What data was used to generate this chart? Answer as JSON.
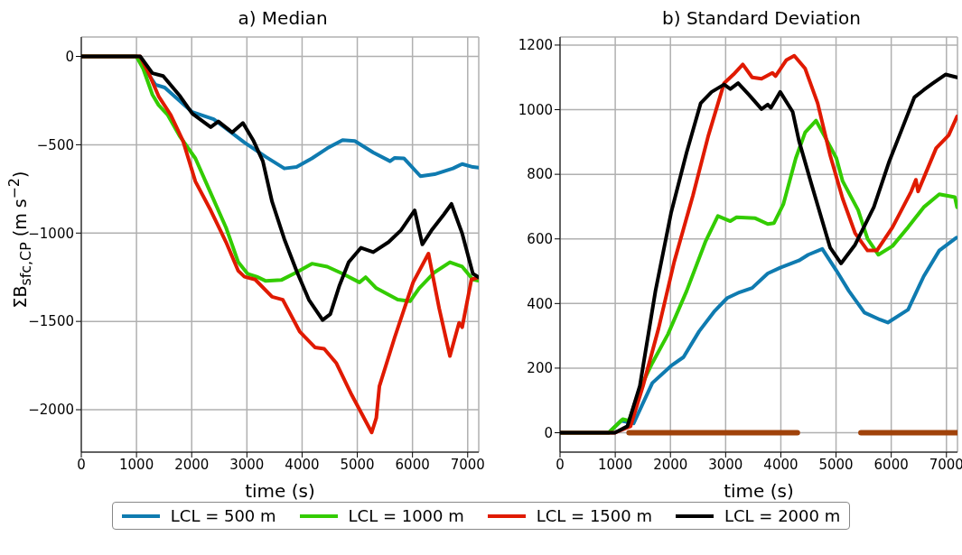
{
  "chart_data": [
    {
      "type": "line",
      "title": "a) Median",
      "xlabel": "time (s)",
      "ylabel": "ΣB$_{sfc,CP}$ (m s$^{−2}$)",
      "xlim": [
        0,
        7200
      ],
      "xticks": [
        0,
        1000,
        2000,
        3000,
        4000,
        5000,
        6000,
        7000
      ],
      "ylim": [
        -2240,
        110
      ],
      "yticks": [
        {
          "value": -2000,
          "label": "−2000"
        },
        {
          "value": -1500,
          "label": "−1500"
        },
        {
          "value": -1000,
          "label": "−1000"
        },
        {
          "value": -500,
          "label": "−500"
        },
        0
      ],
      "grid": true,
      "legend": "bottom",
      "line_style": "solid",
      "series": [
        {
          "name": "LCL = 500 m",
          "color": "#0f7bb0",
          "x": [
            0,
            1000,
            1344,
            1511,
            2011,
            2400,
            2955,
            3344,
            3678,
            3900,
            4178,
            4455,
            4733,
            4955,
            5289,
            5594,
            5678,
            5844,
            6144,
            6400,
            6733,
            6900,
            7094,
            7200
          ],
          "values": [
            0,
            0,
            -160,
            -176,
            -315,
            -356,
            -487,
            -569,
            -634,
            -626,
            -577,
            -520,
            -474,
            -479,
            -544,
            -593,
            -574,
            -577,
            -678,
            -667,
            -634,
            -609,
            -626,
            -630
          ]
        },
        {
          "name": "LCL = 1000 m",
          "color": "#33cc00",
          "x": [
            0,
            1000,
            1122,
            1289,
            1400,
            1567,
            1789,
            2067,
            2344,
            2622,
            2844,
            3011,
            3178,
            3344,
            3622,
            3900,
            4178,
            4455,
            4733,
            5039,
            5150,
            5344,
            5733,
            5955,
            6122,
            6400,
            6678,
            6900,
            7094,
            7200
          ],
          "values": [
            0,
            0,
            -70,
            -217,
            -275,
            -332,
            -454,
            -577,
            -773,
            -969,
            -1165,
            -1230,
            -1247,
            -1271,
            -1266,
            -1222,
            -1173,
            -1190,
            -1230,
            -1279,
            -1250,
            -1312,
            -1377,
            -1386,
            -1312,
            -1222,
            -1165,
            -1190,
            -1263,
            -1270
          ]
        },
        {
          "name": "LCL = 1500 m",
          "color": "#e01a00",
          "x": [
            0,
            1067,
            1233,
            1400,
            1622,
            1844,
            2067,
            2344,
            2622,
            2844,
            2955,
            3150,
            3456,
            3650,
            3955,
            4233,
            4400,
            4622,
            4900,
            5261,
            5344,
            5400,
            5678,
            6011,
            6289,
            6483,
            6678,
            6844,
            6900,
            7067,
            7200
          ],
          "values": [
            0,
            0,
            -103,
            -225,
            -332,
            -479,
            -708,
            -871,
            -1051,
            -1214,
            -1247,
            -1263,
            -1361,
            -1377,
            -1557,
            -1647,
            -1655,
            -1737,
            -1917,
            -2129,
            -2047,
            -1868,
            -1590,
            -1279,
            -1116,
            -1426,
            -1696,
            -1508,
            -1533,
            -1263,
            -1250
          ]
        },
        {
          "name": "LCL = 2000 m",
          "color": "#000000",
          "x": [
            0,
            1067,
            1289,
            1483,
            1789,
            2011,
            2344,
            2483,
            2733,
            2928,
            3122,
            3289,
            3456,
            3678,
            3900,
            4122,
            4372,
            4511,
            4678,
            4844,
            5067,
            5289,
            5567,
            5789,
            6039,
            6178,
            6344,
            6567,
            6706,
            6900,
            7094,
            7200
          ],
          "values": [
            0,
            0,
            -95,
            -111,
            -225,
            -324,
            -400,
            -368,
            -430,
            -377,
            -479,
            -593,
            -822,
            -1034,
            -1214,
            -1377,
            -1492,
            -1459,
            -1296,
            -1165,
            -1083,
            -1108,
            -1051,
            -985,
            -871,
            -1064,
            -985,
            -895,
            -835,
            -1002,
            -1230,
            -1250
          ]
        }
      ]
    },
    {
      "type": "line",
      "title": "b) Standard Deviation",
      "xlabel": "time (s)",
      "xlim": [
        0,
        7200
      ],
      "xticks": [
        0,
        1000,
        2000,
        3000,
        4000,
        5000,
        6000,
        7000
      ],
      "ylim": [
        -60,
        1225
      ],
      "yticks": [
        0,
        200,
        400,
        600,
        800,
        1000,
        1200
      ],
      "grid": true,
      "line_style": "solid",
      "series": [
        {
          "name": "LCL = 500 m",
          "color": "#0f7bb0",
          "x": [
            0,
            881,
            1107,
            1333,
            1672,
            2011,
            2237,
            2520,
            2802,
            3028,
            3254,
            3480,
            3763,
            3989,
            4328,
            4497,
            4751,
            5006,
            5232,
            5514,
            5797,
            5938,
            6305,
            6588,
            6870,
            7181
          ],
          "values": [
            0,
            0,
            37,
            29,
            154,
            207,
            234,
            314,
            377,
            417,
            435,
            448,
            493,
            511,
            533,
            551,
            569,
            502,
            439,
            372,
            350,
            341,
            381,
            484,
            564,
            604
          ]
        },
        {
          "name": "LCL = 1000 m",
          "color": "#33cc00",
          "x": [
            0,
            881,
            1136,
            1249,
            1446,
            1672,
            1955,
            2294,
            2633,
            2859,
            3085,
            3198,
            3537,
            3763,
            3876,
            4045,
            4271,
            4441,
            4638,
            4836,
            5006,
            5119,
            5401,
            5571,
            5768,
            6023,
            6305,
            6588,
            6870,
            7153,
            7192
          ],
          "values": [
            0,
            0,
            42,
            37,
            136,
            216,
            305,
            439,
            591,
            671,
            655,
            667,
            664,
            646,
            649,
            707,
            850,
            930,
            966,
            904,
            850,
            779,
            689,
            600,
            551,
            578,
            636,
            698,
            738,
            729,
            698
          ]
        },
        {
          "name": "LCL = 1500 m",
          "color": "#e01a00",
          "x": [
            0,
            994,
            1277,
            1503,
            1785,
            2068,
            2407,
            2689,
            2972,
            3141,
            3311,
            3480,
            3650,
            3847,
            3904,
            4102,
            4243,
            4441,
            4667,
            4893,
            5119,
            5345,
            5571,
            5740,
            6023,
            6362,
            6446,
            6486,
            6814,
            7040,
            7192
          ],
          "values": [
            0,
            0,
            20,
            145,
            323,
            529,
            734,
            921,
            1082,
            1109,
            1140,
            1100,
            1096,
            1114,
            1104,
            1154,
            1167,
            1127,
            1020,
            859,
            725,
            618,
            564,
            564,
            636,
            747,
            783,
            747,
            881,
            921,
            979
          ]
        },
        {
          "name": "LCL = 2000 m",
          "color": "#000000",
          "x": [
            0,
            994,
            1220,
            1446,
            1729,
            2011,
            2294,
            2548,
            2746,
            2972,
            3085,
            3226,
            3424,
            3650,
            3763,
            3819,
            3989,
            4215,
            4328,
            4554,
            4893,
            5090,
            5345,
            5684,
            5966,
            6192,
            6418,
            6588,
            6757,
            6983,
            7192
          ],
          "values": [
            0,
            0,
            20,
            145,
            439,
            680,
            868,
            1020,
            1055,
            1078,
            1064,
            1082,
            1046,
            1002,
            1016,
            1006,
            1055,
            993,
            904,
            770,
            573,
            524,
            582,
            698,
            841,
            939,
            1038,
            1061,
            1082,
            1109,
            1100
          ]
        },
        {
          "color": "#a0420a",
          "x": [
            1250,
            4300,
            4800,
            5450,
            7200
          ],
          "values": [
            0,
            0,
            null,
            0,
            0
          ]
        }
      ]
    }
  ]
}
